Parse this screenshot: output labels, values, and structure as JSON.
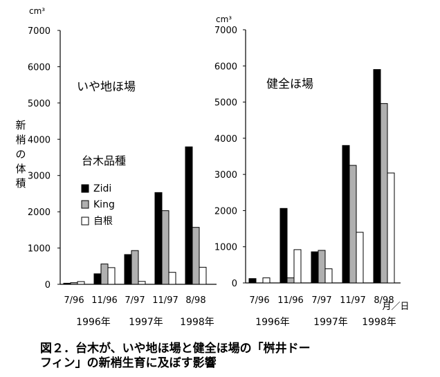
{
  "chart_data": [
    {
      "type": "bar",
      "title": "いや地ほ場",
      "y_unit": "cm³",
      "ylabel": "新梢の体積",
      "ylim": [
        0,
        7000
      ],
      "yticks": [
        0,
        1000,
        2000,
        3000,
        4000,
        5000,
        6000,
        7000
      ],
      "categories": [
        "7/96",
        "11/96",
        "7/97",
        "11/97",
        "8/98"
      ],
      "year_labels": [
        "1996年",
        "1997年",
        "1998年"
      ],
      "legend_title": "台木品種",
      "series": [
        {
          "name": "Zidi",
          "color": "#000000",
          "values": [
            30,
            290,
            820,
            2530,
            3790
          ]
        },
        {
          "name": "King",
          "color": "#b0b0b0",
          "values": [
            45,
            560,
            930,
            2030,
            1570
          ]
        },
        {
          "name": "自根",
          "color": "#ffffff",
          "values": [
            75,
            460,
            80,
            330,
            470
          ]
        }
      ]
    },
    {
      "type": "bar",
      "title": "健全ほ場",
      "y_unit": "cm³",
      "ylim": [
        0,
        7000
      ],
      "yticks": [
        0,
        1000,
        2000,
        3000,
        4000,
        5000,
        6000,
        7000
      ],
      "categories": [
        "7/96",
        "11/96",
        "7/97",
        "11/97",
        "8/98"
      ],
      "year_labels": [
        "1996年",
        "1997年",
        "1998年"
      ],
      "x_unit": "月／日",
      "series": [
        {
          "name": "Zidi",
          "color": "#000000",
          "values": [
            120,
            2060,
            860,
            3800,
            5900
          ]
        },
        {
          "name": "King",
          "color": "#b0b0b0",
          "values": [
            0,
            140,
            900,
            3250,
            4960
          ]
        },
        {
          "name": "自根",
          "color": "#ffffff",
          "values": [
            140,
            920,
            390,
            1400,
            3040
          ]
        }
      ]
    }
  ],
  "caption_line1": "図２．台木が、いや地ほ場と健全ほ場の「桝井ドー",
  "caption_line2": "フィン」の新梢生育に及ぼす影響"
}
